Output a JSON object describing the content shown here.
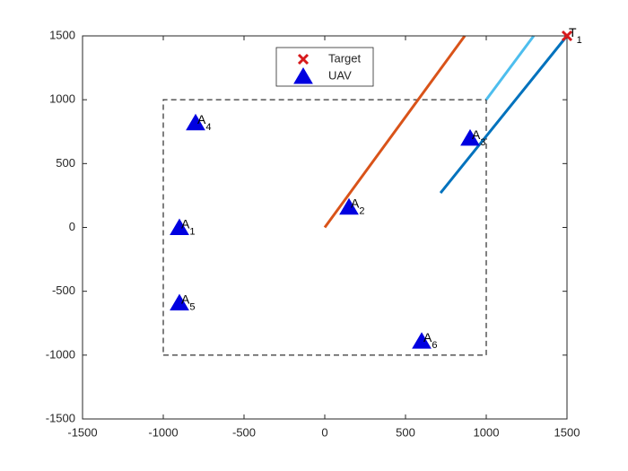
{
  "chart_data": {
    "type": "scatter",
    "xlim": [
      -1500,
      1500
    ],
    "ylim": [
      -1500,
      1500
    ],
    "xticks": [
      -1500,
      -1000,
      -500,
      0,
      500,
      1000,
      1500
    ],
    "yticks": [
      -1500,
      -1000,
      -500,
      0,
      500,
      1000,
      1500
    ],
    "legend": "top-center",
    "boundary": {
      "color": "#000000",
      "x": [
        -1000,
        1000,
        1000,
        -1000,
        -1000
      ],
      "y": [
        -1000,
        -1000,
        1000,
        1000,
        -1000
      ]
    },
    "lines": [
      {
        "color": "#D95319",
        "x": [
          0,
          867
        ],
        "y": [
          0,
          1500
        ]
      },
      {
        "color": "#4DBEEE",
        "x": [
          1000,
          1294
        ],
        "y": [
          1000,
          1500
        ]
      },
      {
        "color": "#0072BD",
        "x": [
          717,
          1500
        ],
        "y": [
          270,
          1500
        ]
      }
    ],
    "series": [
      {
        "name": "Target",
        "marker": "x",
        "color": "#D7191C",
        "x": [
          1500
        ],
        "y": [
          1500
        ],
        "labels": [
          [
            "T",
            "1"
          ]
        ]
      },
      {
        "name": "UAV",
        "marker": "triangle",
        "color": "#0000E0",
        "x": [
          -900,
          150,
          900,
          -800,
          -900,
          600
        ],
        "y": [
          0,
          160,
          700,
          820,
          -590,
          -890
        ],
        "labels": [
          [
            "A",
            "1"
          ],
          [
            "A",
            "2"
          ],
          [
            "A",
            "3"
          ],
          [
            "A",
            "4"
          ],
          [
            "A",
            "5"
          ],
          [
            "A",
            "6"
          ]
        ]
      }
    ]
  }
}
